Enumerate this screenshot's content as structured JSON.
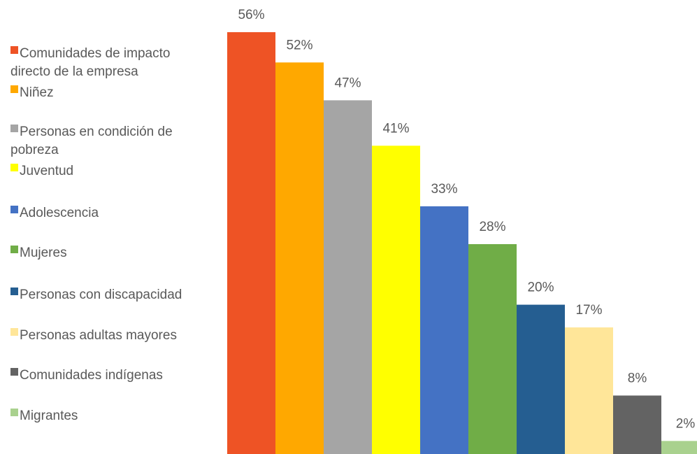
{
  "chart_data": {
    "type": "bar",
    "title": "",
    "xlabel": "",
    "ylabel": "",
    "ylim": [
      0,
      56
    ],
    "legend_position": "left",
    "grid": false,
    "series": [
      {
        "name": "Comunidades de impacto directo de la empresa",
        "value": 56,
        "label": "56%",
        "color": "#EE5325"
      },
      {
        "name": "Niñez",
        "value": 52,
        "label": "52%",
        "color": "#FFA800"
      },
      {
        "name": "Personas en condición de pobreza",
        "value": 47,
        "label": "47%",
        "color": "#A5A5A5"
      },
      {
        "name": "Juventud",
        "value": 41,
        "label": "41%",
        "color": "#FFFF00"
      },
      {
        "name": "Adolescencia",
        "value": 33,
        "label": "33%",
        "color": "#4472C4"
      },
      {
        "name": "Mujeres",
        "value": 28,
        "label": "28%",
        "color": "#70AD47"
      },
      {
        "name": "Personas con discapacidad",
        "value": 20,
        "label": "20%",
        "color": "#255E91"
      },
      {
        "name": "Personas adultas mayores",
        "value": 17,
        "label": "17%",
        "color": "#FFE699"
      },
      {
        "name": "Comunidades indígenas",
        "value": 8,
        "label": "8%",
        "color": "#636363"
      },
      {
        "name": "Migrantes",
        "value": 2,
        "label": "2%",
        "color": "#A9D18E"
      }
    ]
  }
}
